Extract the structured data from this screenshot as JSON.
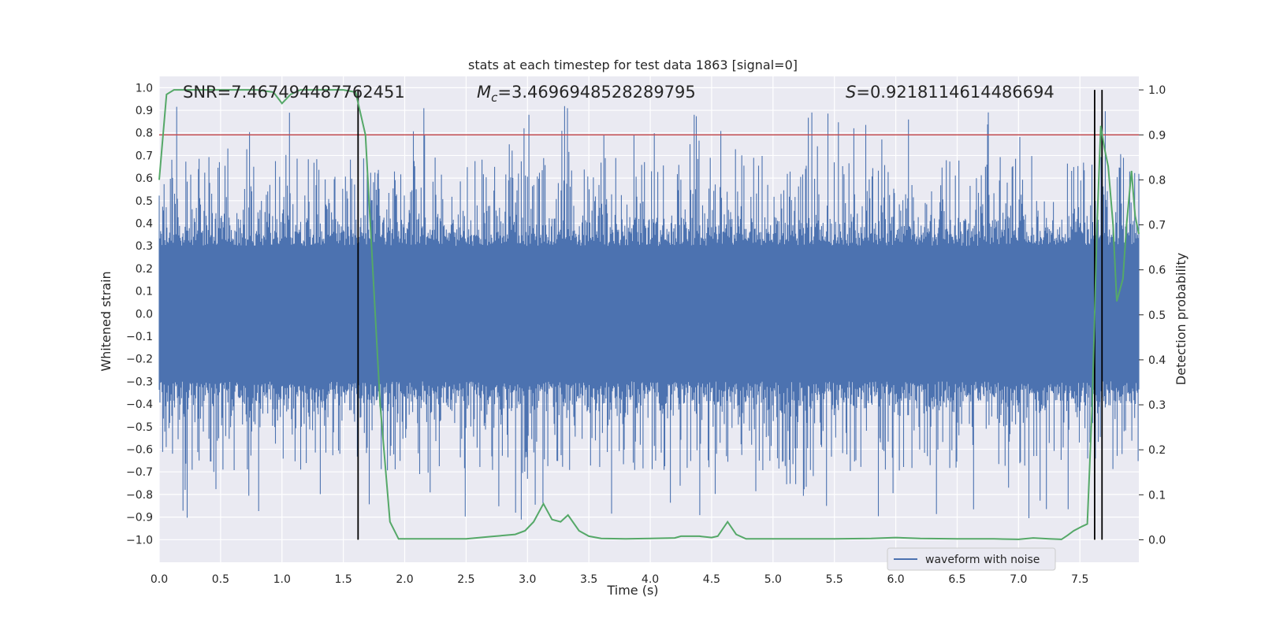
{
  "chart_data": {
    "type": "line",
    "title": "stats at each timestep for test data 1863 [signal=0]",
    "xlabel": "Time (s)",
    "ylabel": "Whitened strain",
    "y2label": "Detection probability",
    "xlim": [
      0.0,
      7.98
    ],
    "ylim": [
      -1.1,
      1.05
    ],
    "y2lim": [
      -0.05,
      1.03
    ],
    "x_ticks": [
      "0.0",
      "0.5",
      "1.0",
      "1.5",
      "2.0",
      "2.5",
      "3.0",
      "3.5",
      "4.0",
      "4.5",
      "5.0",
      "5.5",
      "6.0",
      "6.5",
      "7.0",
      "7.5"
    ],
    "y_ticks": [
      "1.0",
      "0.9",
      "0.8",
      "0.7",
      "0.6",
      "0.5",
      "0.4",
      "0.3",
      "0.2",
      "0.1",
      "0.0",
      "-0.1",
      "-0.2",
      "-0.3",
      "-0.4",
      "-0.5",
      "-0.6",
      "-0.7",
      "-0.8",
      "-0.9",
      "-1.0"
    ],
    "y2_ticks": [
      "1.0",
      "0.9",
      "0.8",
      "0.7",
      "0.6",
      "0.5",
      "0.4",
      "0.3",
      "0.2",
      "0.1",
      "0.0"
    ],
    "grid": true,
    "legend_position": "lower-right",
    "annotations": {
      "snr": "SNR=7.467494487762451",
      "mc_symbol": "M",
      "mc_sub": "c",
      "mc_value": "=3.4696948528289795",
      "s_symbol": "S",
      "s_value": "=0.9218114614486694"
    },
    "threshold_probability": 0.9,
    "event_lines_x": [
      1.62,
      7.62,
      7.68
    ],
    "waveform": {
      "name": "waveform with noise",
      "color": "#4c72b0",
      "sampling_note": "dense noise, approx ±0.4 envelope with spikes to ±0.95",
      "envelope_min": -0.4,
      "envelope_max": 0.4,
      "peak_max": 0.96,
      "peak_min": -0.96
    },
    "probability": {
      "color": "#55a868",
      "x": [
        0.0,
        0.06,
        0.12,
        0.2,
        0.3,
        0.5,
        0.7,
        0.8,
        0.93,
        1.0,
        1.07,
        1.15,
        1.3,
        1.5,
        1.6,
        1.68,
        1.75,
        1.8,
        1.88,
        1.95,
        2.1,
        2.3,
        2.5,
        2.7,
        2.9,
        2.98,
        3.05,
        3.13,
        3.2,
        3.27,
        3.33,
        3.42,
        3.5,
        3.6,
        3.8,
        4.0,
        4.2,
        4.25,
        4.4,
        4.5,
        4.55,
        4.63,
        4.7,
        4.78,
        4.95,
        5.2,
        5.5,
        5.8,
        6.0,
        6.2,
        6.5,
        6.8,
        7.0,
        7.12,
        7.25,
        7.35,
        7.4,
        7.45,
        7.52,
        7.56,
        7.6,
        7.64,
        7.67,
        7.7,
        7.73,
        7.77,
        7.8,
        7.85,
        7.88,
        7.92,
        7.95,
        7.98
      ],
      "y": [
        0.8,
        0.99,
        1.0,
        1.0,
        1.0,
        1.0,
        1.0,
        1.0,
        0.995,
        0.97,
        0.99,
        1.0,
        1.0,
        1.0,
        0.995,
        0.9,
        0.55,
        0.3,
        0.04,
        0.002,
        0.002,
        0.002,
        0.002,
        0.007,
        0.012,
        0.02,
        0.04,
        0.08,
        0.045,
        0.04,
        0.055,
        0.02,
        0.008,
        0.003,
        0.002,
        0.003,
        0.004,
        0.008,
        0.008,
        0.005,
        0.008,
        0.04,
        0.012,
        0.002,
        0.002,
        0.002,
        0.002,
        0.003,
        0.005,
        0.003,
        0.002,
        0.002,
        0.001,
        0.004,
        0.002,
        0.001,
        0.01,
        0.02,
        0.03,
        0.035,
        0.3,
        0.7,
        0.92,
        0.87,
        0.83,
        0.7,
        0.53,
        0.58,
        0.7,
        0.82,
        0.72,
        0.68
      ]
    }
  }
}
